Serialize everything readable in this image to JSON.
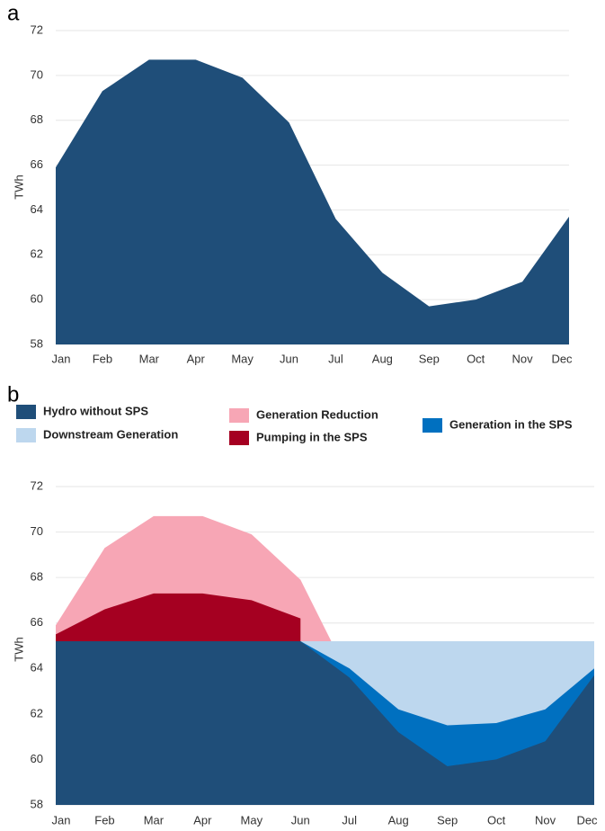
{
  "chart_data": [
    {
      "type": "area",
      "label": "a",
      "y_label": "TWh",
      "categories": [
        "Jan",
        "Feb",
        "Mar",
        "Apr",
        "May",
        "Jun",
        "Jul",
        "Aug",
        "Sep",
        "Oct",
        "Nov",
        "Dec"
      ],
      "series": [
        {
          "color": "#1f4e79",
          "values": [
            65.9,
            69.3,
            70.7,
            70.7,
            69.9,
            67.9,
            63.6,
            61.2,
            59.7,
            60.0,
            60.8,
            63.7
          ]
        }
      ],
      "ylim": [
        58,
        72
      ],
      "yticks": [
        58,
        60,
        62,
        64,
        66,
        68,
        70,
        72
      ],
      "grid": true
    },
    {
      "type": "area",
      "label": "b",
      "y_label": "TWh",
      "categories": [
        "Jan",
        "Feb",
        "Mar",
        "Apr",
        "May",
        "Jun",
        "Jul",
        "Aug",
        "Sep",
        "Oct",
        "Nov",
        "Dec"
      ],
      "series": [
        {
          "name": "Generation Reduction",
          "color": "#f7a6b5",
          "values": [
            65.9,
            69.3,
            70.7,
            70.7,
            69.9,
            67.9,
            63.6,
            null,
            null,
            null,
            null,
            null
          ]
        },
        {
          "name": "Pumping in the SPS",
          "color": "#a50021",
          "values": [
            65.5,
            66.6,
            67.3,
            67.3,
            67.0,
            66.2,
            null,
            null,
            null,
            null,
            null,
            null
          ]
        },
        {
          "name": "Downstream Generation",
          "color": "#bdd7ee",
          "values": [
            null,
            null,
            null,
            null,
            null,
            65.2,
            65.2,
            65.2,
            65.2,
            65.2,
            65.2,
            65.2
          ]
        },
        {
          "name": "Generation in the SPS",
          "color": "#0070c0",
          "values": [
            null,
            null,
            null,
            null,
            null,
            65.2,
            64.0,
            62.2,
            61.5,
            61.6,
            62.2,
            64.0
          ]
        },
        {
          "name": "Hydro without SPS",
          "color": "#1f4e79",
          "values": [
            65.2,
            65.2,
            65.2,
            65.2,
            65.2,
            65.2,
            63.6,
            61.2,
            59.7,
            60.0,
            60.8,
            63.7
          ]
        }
      ],
      "ylim": [
        58,
        72
      ],
      "yticks": [
        58,
        60,
        62,
        64,
        66,
        68,
        70,
        72
      ],
      "grid": true
    }
  ]
}
